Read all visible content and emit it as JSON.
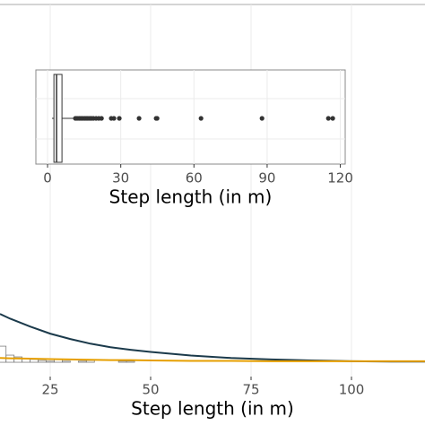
{
  "chart_data": [
    {
      "type": "density",
      "x_label": "Step length (in m)",
      "xlim": [
        12.5,
        118.3
      ],
      "xticks": [
        25,
        50,
        75,
        100
      ],
      "ylim": [
        -0.004,
        0.1
      ],
      "grid": true,
      "histogram": {
        "bins": [
          12,
          14,
          16,
          18,
          20,
          22,
          24,
          26,
          28,
          30,
          32,
          34,
          36,
          38,
          40,
          42,
          44,
          46
        ],
        "counts": [
          0.0045,
          0.002,
          0.0015,
          0.001,
          0.0008,
          0.0005,
          0.0003,
          0.0008,
          0.0003,
          0,
          0.0003,
          0.0005,
          0,
          0,
          0,
          0.0003,
          0.0003
        ],
        "color": "#7f7f7f"
      },
      "x": [
        12.5,
        15,
        20,
        25,
        30,
        35,
        40,
        45,
        50,
        60,
        70,
        80,
        90,
        100,
        110,
        118.3
      ],
      "series": [
        {
          "color": "#1b3a4b",
          "values": [
            0.0135,
            0.0122,
            0.01,
            0.008,
            0.0065,
            0.0052,
            0.0042,
            0.0035,
            0.0029,
            0.0019,
            0.0012,
            0.0008,
            0.0005,
            0.0003,
            0.0002,
            0.0002
          ]
        },
        {
          "color": "#e69f00",
          "values": [
            0.0012,
            0.0011,
            0.001,
            0.0009,
            0.0008,
            0.0007,
            0.0006,
            0.0006,
            0.0005,
            0.0004,
            0.0004,
            0.0003,
            0.0003,
            0.0003,
            0.0003,
            0.0003
          ]
        }
      ]
    },
    {
      "type": "boxplot",
      "x_label": "Step length (in m)",
      "xlim": [
        -4.8,
        122
      ],
      "xticks": [
        0,
        30,
        60,
        90,
        120
      ],
      "grid": true,
      "whisker_low": 1.8,
      "q1": 2.6,
      "median": 3.7,
      "q3": 5.9,
      "whisker_high": 11.4,
      "outliers": [
        11.4,
        12.1,
        12.9,
        13.6,
        14.3,
        15.1,
        15.8,
        16.5,
        17.3,
        18.0,
        18.8,
        19.9,
        21.0,
        22.1,
        26.1,
        27.2,
        29.4,
        37.5,
        44.5,
        44.9,
        62.9,
        87.9,
        115.1,
        116.9
      ]
    }
  ]
}
